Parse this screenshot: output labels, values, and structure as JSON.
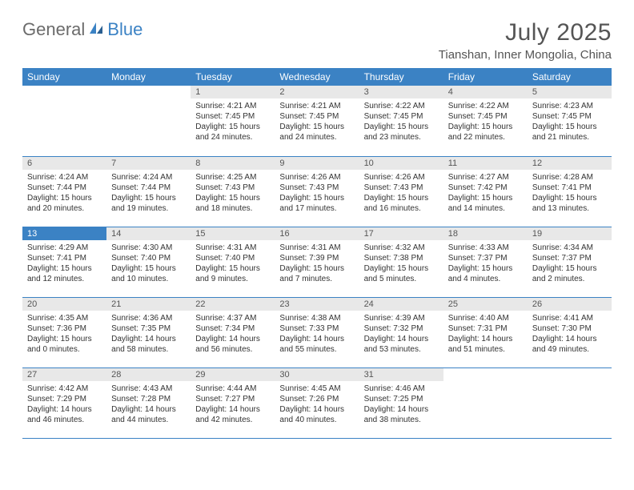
{
  "logo": {
    "text1": "General",
    "text2": "Blue"
  },
  "header": {
    "month_title": "July 2025",
    "location": "Tianshan, Inner Mongolia, China"
  },
  "colors": {
    "brand_blue": "#3b82c4",
    "header_text": "#ffffff",
    "daybar_bg": "#e8e8e8",
    "text": "#333333",
    "muted": "#555555"
  },
  "day_headers": [
    "Sunday",
    "Monday",
    "Tuesday",
    "Wednesday",
    "Thursday",
    "Friday",
    "Saturday"
  ],
  "labels": {
    "sunrise_prefix": "Sunrise: ",
    "sunset_prefix": "Sunset: ",
    "daylight_prefix": "Daylight: "
  },
  "weeks": [
    [
      null,
      null,
      {
        "n": "1",
        "sunrise": "4:21 AM",
        "sunset": "7:45 PM",
        "daylight": "15 hours and 24 minutes."
      },
      {
        "n": "2",
        "sunrise": "4:21 AM",
        "sunset": "7:45 PM",
        "daylight": "15 hours and 24 minutes."
      },
      {
        "n": "3",
        "sunrise": "4:22 AM",
        "sunset": "7:45 PM",
        "daylight": "15 hours and 23 minutes."
      },
      {
        "n": "4",
        "sunrise": "4:22 AM",
        "sunset": "7:45 PM",
        "daylight": "15 hours and 22 minutes."
      },
      {
        "n": "5",
        "sunrise": "4:23 AM",
        "sunset": "7:45 PM",
        "daylight": "15 hours and 21 minutes."
      }
    ],
    [
      {
        "n": "6",
        "sunrise": "4:24 AM",
        "sunset": "7:44 PM",
        "daylight": "15 hours and 20 minutes."
      },
      {
        "n": "7",
        "sunrise": "4:24 AM",
        "sunset": "7:44 PM",
        "daylight": "15 hours and 19 minutes."
      },
      {
        "n": "8",
        "sunrise": "4:25 AM",
        "sunset": "7:43 PM",
        "daylight": "15 hours and 18 minutes."
      },
      {
        "n": "9",
        "sunrise": "4:26 AM",
        "sunset": "7:43 PM",
        "daylight": "15 hours and 17 minutes."
      },
      {
        "n": "10",
        "sunrise": "4:26 AM",
        "sunset": "7:43 PM",
        "daylight": "15 hours and 16 minutes."
      },
      {
        "n": "11",
        "sunrise": "4:27 AM",
        "sunset": "7:42 PM",
        "daylight": "15 hours and 14 minutes."
      },
      {
        "n": "12",
        "sunrise": "4:28 AM",
        "sunset": "7:41 PM",
        "daylight": "15 hours and 13 minutes."
      }
    ],
    [
      {
        "n": "13",
        "sunrise": "4:29 AM",
        "sunset": "7:41 PM",
        "daylight": "15 hours and 12 minutes.",
        "today": true
      },
      {
        "n": "14",
        "sunrise": "4:30 AM",
        "sunset": "7:40 PM",
        "daylight": "15 hours and 10 minutes."
      },
      {
        "n": "15",
        "sunrise": "4:31 AM",
        "sunset": "7:40 PM",
        "daylight": "15 hours and 9 minutes."
      },
      {
        "n": "16",
        "sunrise": "4:31 AM",
        "sunset": "7:39 PM",
        "daylight": "15 hours and 7 minutes."
      },
      {
        "n": "17",
        "sunrise": "4:32 AM",
        "sunset": "7:38 PM",
        "daylight": "15 hours and 5 minutes."
      },
      {
        "n": "18",
        "sunrise": "4:33 AM",
        "sunset": "7:37 PM",
        "daylight": "15 hours and 4 minutes."
      },
      {
        "n": "19",
        "sunrise": "4:34 AM",
        "sunset": "7:37 PM",
        "daylight": "15 hours and 2 minutes."
      }
    ],
    [
      {
        "n": "20",
        "sunrise": "4:35 AM",
        "sunset": "7:36 PM",
        "daylight": "15 hours and 0 minutes."
      },
      {
        "n": "21",
        "sunrise": "4:36 AM",
        "sunset": "7:35 PM",
        "daylight": "14 hours and 58 minutes."
      },
      {
        "n": "22",
        "sunrise": "4:37 AM",
        "sunset": "7:34 PM",
        "daylight": "14 hours and 56 minutes."
      },
      {
        "n": "23",
        "sunrise": "4:38 AM",
        "sunset": "7:33 PM",
        "daylight": "14 hours and 55 minutes."
      },
      {
        "n": "24",
        "sunrise": "4:39 AM",
        "sunset": "7:32 PM",
        "daylight": "14 hours and 53 minutes."
      },
      {
        "n": "25",
        "sunrise": "4:40 AM",
        "sunset": "7:31 PM",
        "daylight": "14 hours and 51 minutes."
      },
      {
        "n": "26",
        "sunrise": "4:41 AM",
        "sunset": "7:30 PM",
        "daylight": "14 hours and 49 minutes."
      }
    ],
    [
      {
        "n": "27",
        "sunrise": "4:42 AM",
        "sunset": "7:29 PM",
        "daylight": "14 hours and 46 minutes."
      },
      {
        "n": "28",
        "sunrise": "4:43 AM",
        "sunset": "7:28 PM",
        "daylight": "14 hours and 44 minutes."
      },
      {
        "n": "29",
        "sunrise": "4:44 AM",
        "sunset": "7:27 PM",
        "daylight": "14 hours and 42 minutes."
      },
      {
        "n": "30",
        "sunrise": "4:45 AM",
        "sunset": "7:26 PM",
        "daylight": "14 hours and 40 minutes."
      },
      {
        "n": "31",
        "sunrise": "4:46 AM",
        "sunset": "7:25 PM",
        "daylight": "14 hours and 38 minutes."
      },
      null,
      null
    ]
  ]
}
